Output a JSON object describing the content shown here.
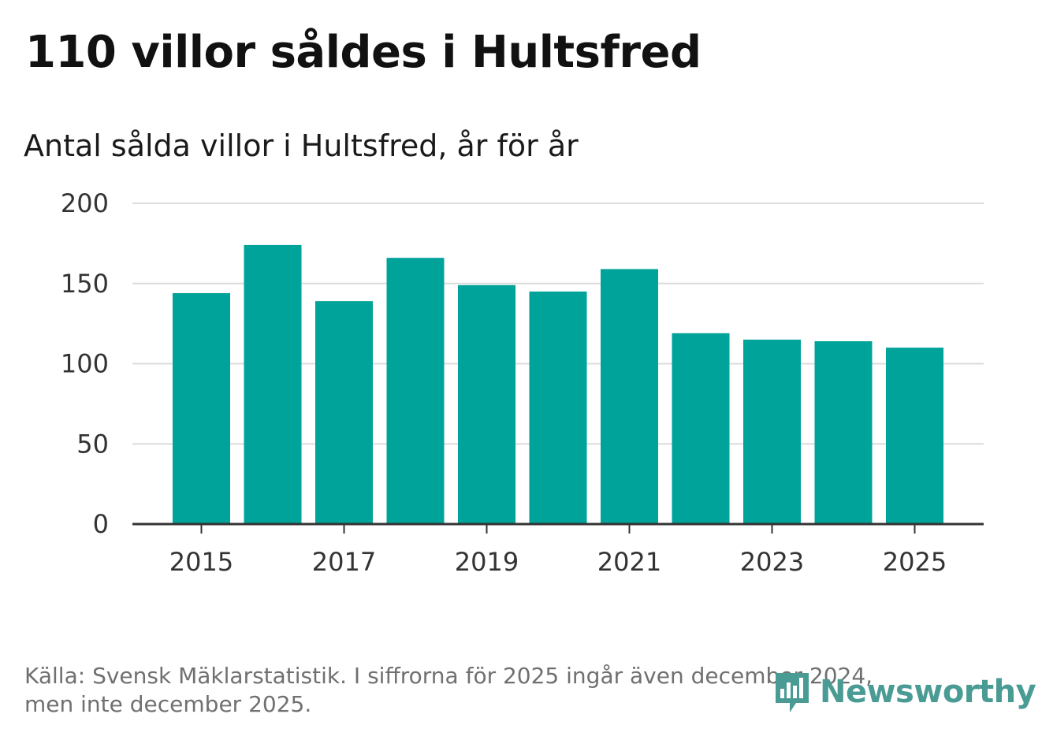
{
  "header": {
    "title": "110 villor såldes i Hultsfred",
    "subtitle": "Antal sålda villor i Hultsfred, år för år"
  },
  "footer": {
    "source_line1": "Källa: Svensk Mäklarstatistik. I siffrorna för 2025 ingår även december 2024,",
    "source_line2": "men inte december 2025."
  },
  "logo": {
    "text": "Newsworthy",
    "icon": "newsworthy-logo-icon"
  },
  "colors": {
    "bar": "#00a39a",
    "grid": "#dcdcdc",
    "axis": "#333333",
    "logo": "#4a9b94"
  },
  "chart_data": {
    "type": "bar",
    "title": "Antal sålda villor i Hultsfred, år för år",
    "xlabel": "",
    "ylabel": "",
    "categories": [
      "2015",
      "2016",
      "2017",
      "2018",
      "2019",
      "2020",
      "2021",
      "2022",
      "2023",
      "2024",
      "2025"
    ],
    "values": [
      144,
      174,
      139,
      166,
      149,
      145,
      159,
      119,
      115,
      114,
      110
    ],
    "x_tick_labels": [
      "2015",
      "2017",
      "2019",
      "2021",
      "2023",
      "2025"
    ],
    "y_ticks": [
      0,
      50,
      100,
      150,
      200
    ],
    "ylim": [
      0,
      200
    ],
    "grid": true,
    "legend": "none"
  }
}
